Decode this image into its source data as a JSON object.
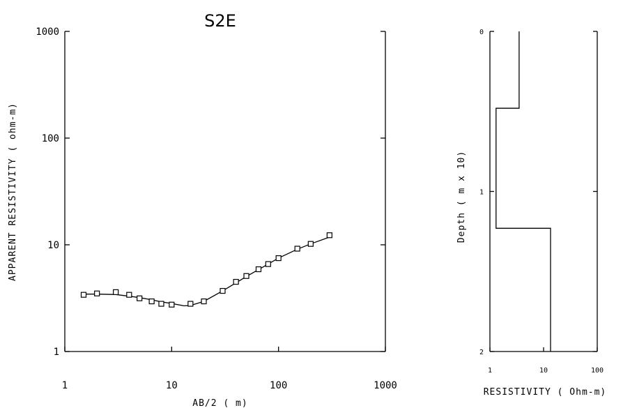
{
  "chart_data": [
    {
      "type": "scatter",
      "title": "S2E",
      "xlabel": "AB/2 ( m)",
      "ylabel": "APPARENT RESISTIVITY ( ohm-m)",
      "xscale": "log",
      "yscale": "log",
      "xlim": [
        1,
        1000
      ],
      "ylim": [
        1,
        1000
      ],
      "xticks": [
        "1",
        "10",
        "100",
        "1000"
      ],
      "yticks": [
        "1",
        "10",
        "100",
        "1000"
      ],
      "grid": false,
      "series": [
        {
          "kind": "markers",
          "x": [
            1.5,
            2,
            3,
            4,
            5,
            6.5,
            8,
            10,
            15,
            20,
            30,
            40,
            50,
            65,
            80,
            100,
            150,
            200,
            300
          ],
          "y": [
            3.4,
            3.5,
            3.6,
            3.4,
            3.15,
            2.95,
            2.8,
            2.75,
            2.8,
            2.95,
            3.7,
            4.5,
            5.1,
            5.9,
            6.6,
            7.5,
            9.2,
            10.2,
            12.3
          ]
        },
        {
          "kind": "line",
          "x": [
            1.5,
            2,
            3,
            4,
            5,
            6.5,
            8,
            10,
            13,
            15,
            20,
            30,
            40,
            50,
            65,
            80,
            100,
            150,
            200,
            300
          ],
          "y": [
            3.45,
            3.45,
            3.42,
            3.3,
            3.2,
            3.05,
            2.92,
            2.82,
            2.68,
            2.7,
            2.95,
            3.7,
            4.4,
            5.05,
            5.85,
            6.6,
            7.5,
            9.1,
            10.2,
            11.8
          ]
        }
      ]
    },
    {
      "type": "line",
      "title": "",
      "xlabel": "RESISTIVITY ( Ohm-m)",
      "ylabel": "Depth ( m x 10)",
      "xscale": "log",
      "xlim": [
        1,
        100
      ],
      "ylim": [
        0,
        2
      ],
      "y_inverted": true,
      "xticks": [
        "1",
        "10",
        "100"
      ],
      "yticks": [
        "0",
        "1",
        "2"
      ],
      "grid": false,
      "layers": [
        {
          "resistivity": 3.5,
          "top": 0,
          "bottom": 0.48
        },
        {
          "resistivity": 1.3,
          "top": 0.48,
          "bottom": 1.23
        },
        {
          "resistivity": 13.5,
          "top": 1.23,
          "bottom": 2
        }
      ]
    }
  ]
}
